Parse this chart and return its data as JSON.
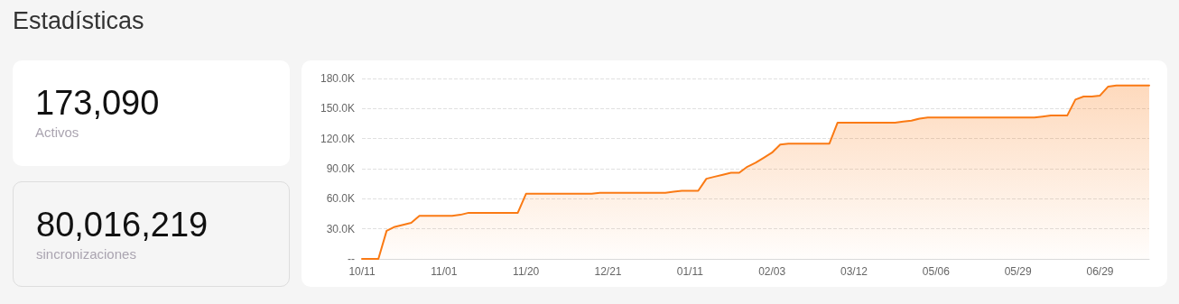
{
  "chart_data": [
    {
      "type": "other",
      "title": "Estadísticas",
      "annotations": [
        "173,090",
        "Activos"
      ]
    },
    {
      "type": "other",
      "annotations": [
        "80,016,219",
        "sincronizaciones"
      ]
    },
    {
      "type": "area",
      "categories": [
        "10/11",
        null,
        null,
        null,
        null,
        null,
        null,
        null,
        null,
        null,
        "11/01",
        null,
        null,
        null,
        null,
        null,
        null,
        null,
        null,
        null,
        "11/20",
        null,
        null,
        null,
        null,
        null,
        null,
        null,
        null,
        null,
        "12/21",
        null,
        null,
        null,
        null,
        null,
        null,
        null,
        null,
        null,
        "01/11",
        null,
        null,
        null,
        null,
        null,
        null,
        null,
        null,
        null,
        "02/03",
        null,
        null,
        null,
        null,
        null,
        null,
        null,
        null,
        null,
        "03/12",
        null,
        null,
        null,
        null,
        null,
        null,
        null,
        null,
        null,
        "05/06",
        null,
        null,
        null,
        null,
        null,
        null,
        null,
        null,
        null,
        "05/29",
        null,
        null,
        null,
        null,
        null,
        null,
        null,
        null,
        null,
        "06/29",
        null,
        null,
        null,
        null,
        null,
        null
      ],
      "series": [
        {
          "color": "#fa7a14",
          "values": [
            0,
            0,
            0,
            28000,
            32000,
            34000,
            36000,
            43000,
            43000,
            43000,
            43000,
            43000,
            44000,
            46000,
            46000,
            46000,
            46000,
            46000,
            46000,
            46000,
            65000,
            65000,
            65000,
            65000,
            65000,
            65000,
            65000,
            65000,
            65000,
            66000,
            66000,
            66000,
            66000,
            66000,
            66000,
            66000,
            66000,
            66000,
            67000,
            68000,
            68000,
            68000,
            80000,
            82000,
            84000,
            86000,
            86000,
            92000,
            96000,
            101000,
            106000,
            114000,
            115000,
            115000,
            115000,
            115000,
            115000,
            115000,
            136000,
            136000,
            136000,
            136000,
            136000,
            136000,
            136000,
            136000,
            137000,
            138000,
            140000,
            141000,
            141000,
            141000,
            141000,
            141000,
            141000,
            141000,
            141000,
            141000,
            141000,
            141000,
            141000,
            141000,
            141000,
            142000,
            143000,
            143000,
            143000,
            159000,
            162000,
            162000,
            163000,
            172000,
            173000,
            173000,
            173000,
            173000,
            173000
          ]
        }
      ],
      "ylim": [
        0,
        180000
      ],
      "yticks": [
        {
          "value": 0,
          "label": "--"
        },
        {
          "value": 30000,
          "label": "30.0K"
        },
        {
          "value": 60000,
          "label": "60.0K"
        },
        {
          "value": 90000,
          "label": "90.0K"
        },
        {
          "value": 120000,
          "label": "120.0K"
        },
        {
          "value": 150000,
          "label": "150.0K"
        },
        {
          "value": 180000,
          "label": "180.0K"
        }
      ],
      "grid": "y",
      "marker": "none",
      "line_style": "solid"
    }
  ]
}
